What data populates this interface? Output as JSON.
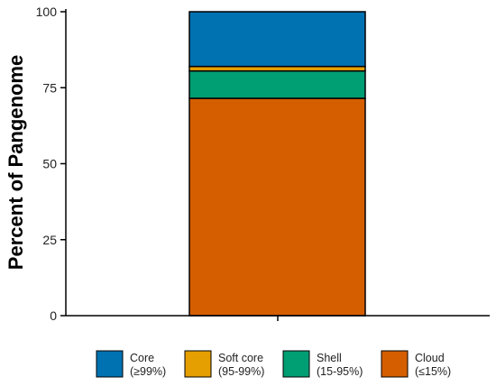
{
  "chart_data": {
    "type": "bar",
    "stacked": true,
    "categories": [
      ""
    ],
    "ylabel": "Percent of Pangenome",
    "xlabel": "",
    "ylim": [
      0,
      100
    ],
    "yticks": [
      "0",
      "25",
      "50",
      "75",
      "100"
    ],
    "grid": false,
    "legend_position": "bottom",
    "series": [
      {
        "name": "Cloud",
        "range": "(≤15%)",
        "values": [
          71.5
        ],
        "color": "#D55E00"
      },
      {
        "name": "Shell",
        "range": "(15-95%)",
        "values": [
          9.0
        ],
        "color": "#009E73"
      },
      {
        "name": "Soft core",
        "range": "(95-99%)",
        "values": [
          1.5
        ],
        "color": "#E69F00"
      },
      {
        "name": "Core",
        "range": "(≥99%)",
        "values": [
          18.0
        ],
        "color": "#0072B2"
      }
    ],
    "legend_order": [
      "Core",
      "Soft core",
      "Shell",
      "Cloud"
    ]
  }
}
